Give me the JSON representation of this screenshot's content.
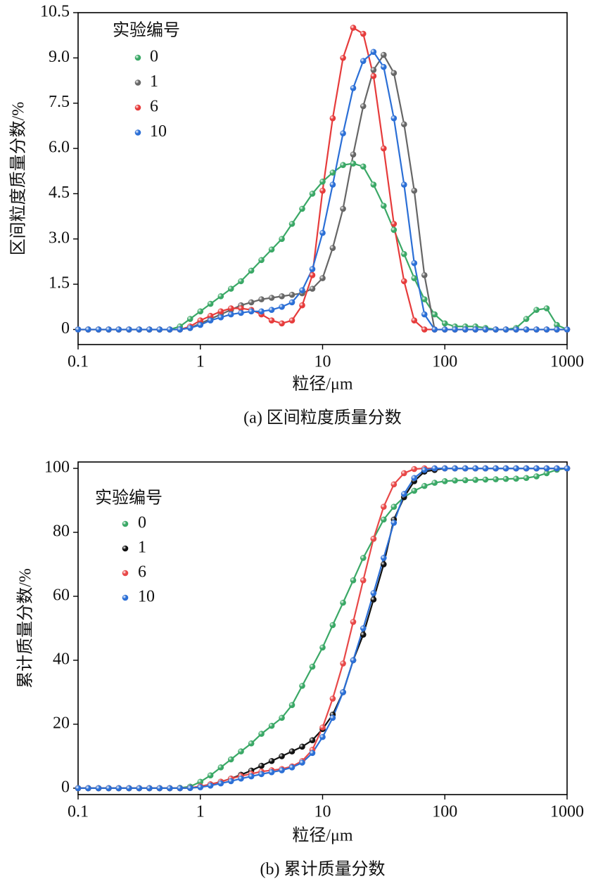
{
  "chart_data": [
    {
      "type": "line",
      "caption": "(a) 区间粒度质量分数",
      "x_label": "粒径/μm",
      "y_label": "区间粒度质量分数/%",
      "legend_title": "实验编号",
      "legend": "upper-left",
      "xscale": "log",
      "xlim": [
        0.1,
        1000
      ],
      "xticks": [
        0.1,
        1,
        10,
        100,
        1000
      ],
      "ylim": [
        -0.5,
        10.5
      ],
      "yticks": [
        0,
        {
          "value": 1.5,
          "label": "1.5"
        },
        {
          "value": 3,
          "label": "3.0"
        },
        {
          "value": 4.5,
          "label": "4.5"
        },
        {
          "value": 6,
          "label": "6.0"
        },
        {
          "value": 7.5,
          "label": "7.5"
        },
        {
          "value": 9,
          "label": "9.0"
        },
        {
          "value": 10.5,
          "label": "10.5"
        }
      ],
      "x": [
        0.1,
        0.121,
        0.147,
        0.178,
        0.215,
        0.261,
        0.316,
        0.383,
        0.464,
        0.562,
        0.681,
        0.825,
        1,
        1.21,
        1.47,
        1.78,
        2.15,
        2.61,
        3.16,
        3.83,
        4.64,
        5.62,
        6.81,
        8.25,
        10,
        12.1,
        14.7,
        17.8,
        21.5,
        26.1,
        31.6,
        38.3,
        46.4,
        56.2,
        68.1,
        82.5,
        100,
        121,
        147,
        178,
        215,
        261,
        316,
        383,
        464,
        562,
        681,
        825,
        1000
      ],
      "series": [
        {
          "name": "0",
          "color": "#3aa866",
          "values": [
            0,
            0,
            0,
            0,
            0,
            0,
            0,
            0,
            0,
            0,
            0.1,
            0.35,
            0.6,
            0.85,
            1.1,
            1.35,
            1.6,
            1.95,
            2.3,
            2.65,
            3.0,
            3.5,
            4.0,
            4.5,
            4.9,
            5.2,
            5.45,
            5.5,
            5.4,
            4.8,
            4.1,
            3.3,
            2.5,
            1.7,
            1.0,
            0.5,
            0.2,
            0.1,
            0.1,
            0.1,
            0.05,
            0,
            0,
            0.05,
            0.35,
            0.65,
            0.7,
            0.15,
            0
          ]
        },
        {
          "name": "1",
          "color": "#666666",
          "values": [
            0,
            0,
            0,
            0,
            0,
            0,
            0,
            0,
            0,
            0,
            0,
            0.05,
            0.2,
            0.35,
            0.5,
            0.65,
            0.8,
            0.9,
            1.0,
            1.05,
            1.1,
            1.15,
            1.2,
            1.35,
            1.7,
            2.7,
            4.0,
            5.8,
            7.4,
            8.6,
            9.1,
            8.5,
            6.8,
            4.6,
            1.8,
            0,
            0,
            0,
            0,
            0,
            0,
            0,
            0,
            0,
            0,
            0,
            0,
            0,
            0
          ]
        },
        {
          "name": "6",
          "color": "#e63b3b",
          "values": [
            0,
            0,
            0,
            0,
            0,
            0,
            0,
            0,
            0,
            0,
            0,
            0.1,
            0.3,
            0.45,
            0.6,
            0.7,
            0.7,
            0.65,
            0.5,
            0.3,
            0.2,
            0.3,
            0.8,
            1.8,
            4.6,
            7.0,
            9.0,
            10.0,
            9.8,
            8.4,
            6.0,
            3.5,
            1.6,
            0.3,
            0,
            0,
            0,
            0,
            0,
            0,
            0,
            0,
            0,
            0,
            0,
            0,
            0,
            0,
            0
          ]
        },
        {
          "name": "10",
          "color": "#2b6fd6",
          "values": [
            0,
            0,
            0,
            0,
            0,
            0,
            0,
            0,
            0,
            0,
            0,
            0.05,
            0.15,
            0.3,
            0.4,
            0.5,
            0.55,
            0.6,
            0.6,
            0.65,
            0.75,
            0.9,
            1.3,
            2.0,
            3.2,
            4.8,
            6.5,
            8.0,
            8.9,
            9.2,
            8.7,
            7.0,
            4.8,
            2.2,
            0.5,
            0,
            0,
            0,
            0,
            0,
            0,
            0,
            0,
            0,
            0,
            0,
            0,
            0,
            0
          ]
        }
      ]
    },
    {
      "type": "line",
      "caption": "(b) 累计质量分数",
      "x_label": "粒径/μm",
      "y_label": "累计质量分数/%",
      "legend_title": "实验编号",
      "legend": "upper-left",
      "xscale": "log",
      "xlim": [
        0.1,
        1000
      ],
      "xticks": [
        0.1,
        1,
        10,
        100,
        1000
      ],
      "ylim": [
        -2,
        102
      ],
      "yticks": [
        0,
        20,
        40,
        60,
        80,
        100
      ],
      "x": [
        0.1,
        0.121,
        0.147,
        0.178,
        0.215,
        0.261,
        0.316,
        0.383,
        0.464,
        0.562,
        0.681,
        0.825,
        1,
        1.21,
        1.47,
        1.78,
        2.15,
        2.61,
        3.16,
        3.83,
        4.64,
        5.62,
        6.81,
        8.25,
        10,
        12.1,
        14.7,
        17.8,
        21.5,
        26.1,
        31.6,
        38.3,
        46.4,
        56.2,
        68.1,
        82.5,
        100,
        121,
        147,
        178,
        215,
        261,
        316,
        383,
        464,
        562,
        681,
        825,
        1000
      ],
      "series": [
        {
          "name": "0",
          "color": "#3aa866",
          "values": [
            0,
            0,
            0,
            0,
            0,
            0,
            0,
            0,
            0,
            0,
            0.1,
            0.5,
            2,
            4,
            6.5,
            9,
            11.5,
            14,
            17,
            19.5,
            22,
            26,
            32,
            38,
            44,
            51,
            58,
            65,
            72,
            78,
            84,
            88,
            91,
            93,
            94.5,
            95.5,
            96,
            96.2,
            96.3,
            96.4,
            96.5,
            96.6,
            96.7,
            96.8,
            97,
            97.5,
            98.5,
            99.6,
            100
          ]
        },
        {
          "name": "1",
          "color": "#111111",
          "values": [
            0,
            0,
            0,
            0,
            0,
            0,
            0,
            0,
            0,
            0,
            0,
            0.1,
            0.5,
            1.2,
            2,
            3,
            4.2,
            5.5,
            7,
            8.5,
            10,
            11.5,
            13,
            15,
            18.5,
            23,
            30,
            40,
            48,
            59,
            70,
            84,
            91,
            96,
            99,
            99.5,
            100,
            100,
            100,
            100,
            100,
            100,
            100,
            100,
            100,
            100,
            100,
            100,
            100
          ]
        },
        {
          "name": "6",
          "color": "#e84848",
          "values": [
            0,
            0,
            0,
            0,
            0,
            0,
            0,
            0,
            0,
            0,
            0,
            0.1,
            0.6,
            1.2,
            2,
            3,
            3.8,
            4.5,
            5.2,
            5.6,
            6,
            6.8,
            8.5,
            12,
            19,
            28,
            39,
            52,
            65,
            78,
            88,
            95,
            98.5,
            99.8,
            100,
            100,
            100,
            100,
            100,
            100,
            100,
            100,
            100,
            100,
            100,
            100,
            100,
            100,
            100
          ]
        },
        {
          "name": "10",
          "color": "#2b6fd6",
          "values": [
            0,
            0,
            0,
            0,
            0,
            0,
            0,
            0,
            0,
            0,
            0,
            0.05,
            0.3,
            0.8,
            1.5,
            2.2,
            3,
            3.7,
            4.4,
            5,
            5.6,
            6.5,
            8,
            11,
            16,
            22,
            30,
            40,
            50,
            61,
            72,
            83,
            92,
            97,
            99.5,
            100,
            100,
            100,
            100,
            100,
            100,
            100,
            100,
            100,
            100,
            100,
            100,
            100,
            100
          ]
        }
      ]
    }
  ]
}
